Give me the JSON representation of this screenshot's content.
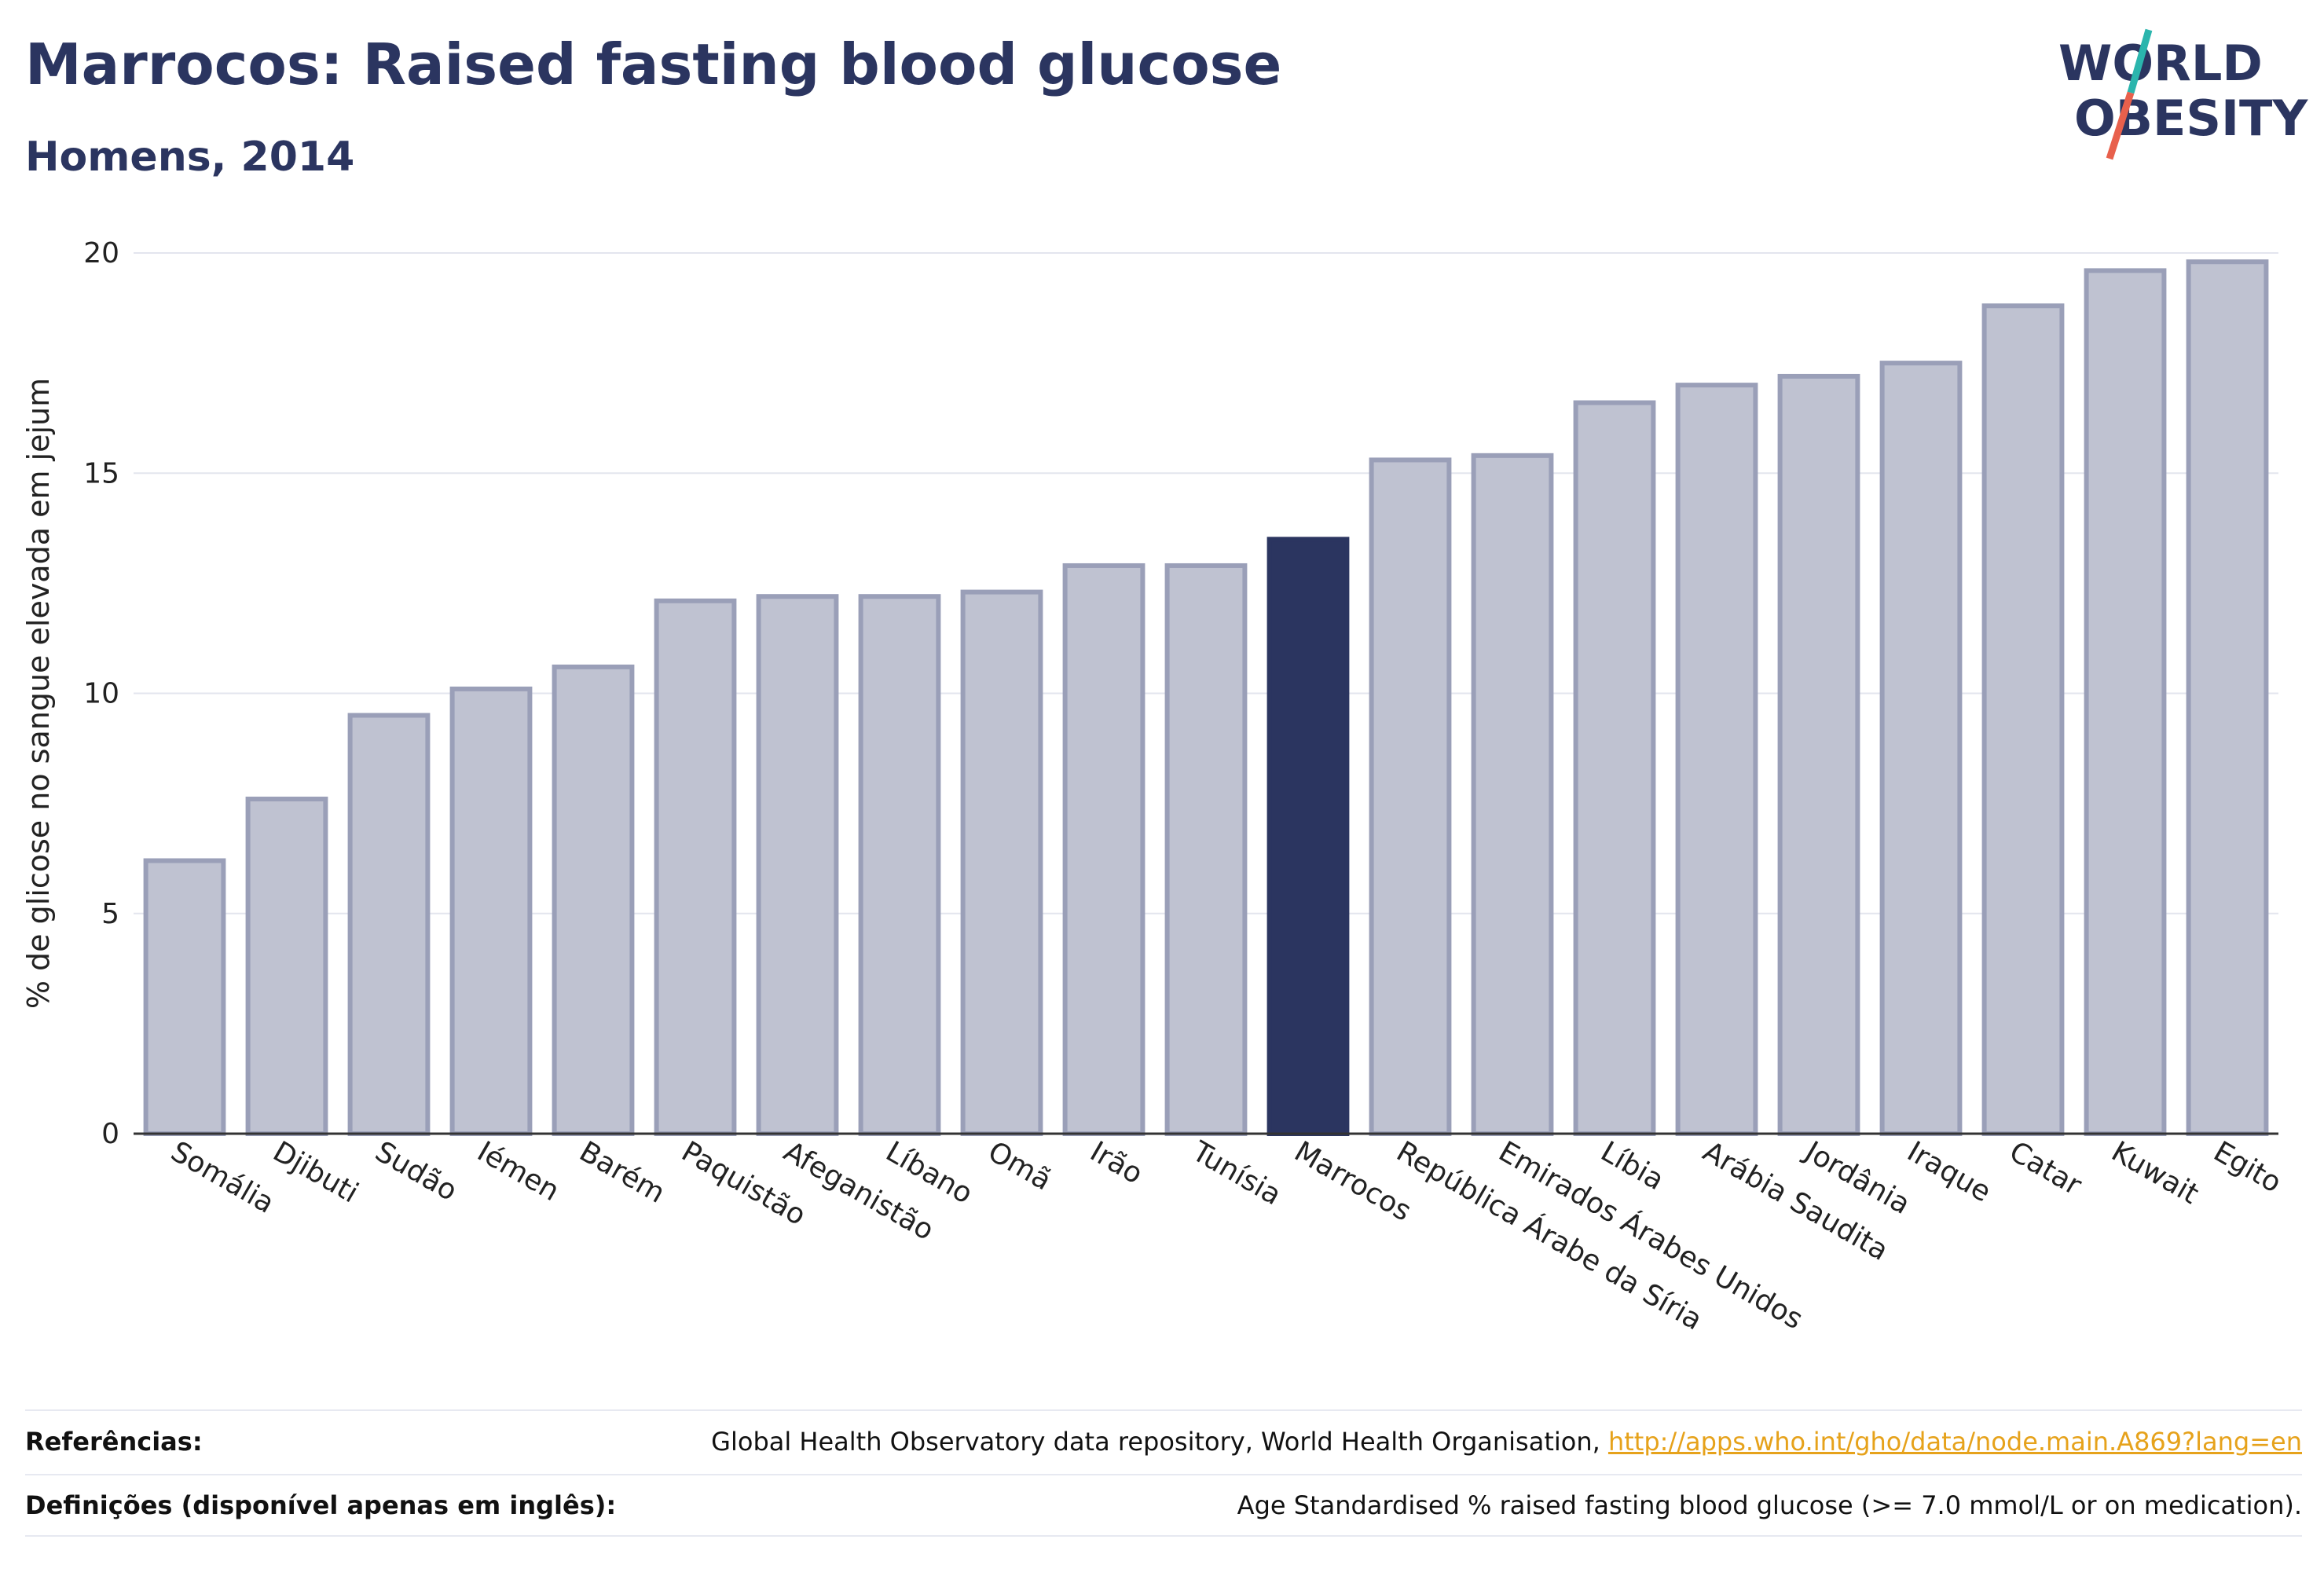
{
  "header": {
    "title": "Marrocos: Raised fasting blood glucose",
    "subtitle": "Homens, 2014"
  },
  "logo": {
    "line1": "WORLD",
    "line2": "OBESITY"
  },
  "footer": {
    "references_label": "Referências:",
    "references_text": "Global Health Observatory data repository, World Health Organisation,",
    "references_link": "http://apps.who.int/gho/data/node.main.A869?lang=en",
    "definitions_label": "Definições (disponível apenas em inglês):",
    "definitions_text": "Age Standardised % raised fasting blood glucose (>= 7.0 mmol/L or on medication)."
  },
  "colors": {
    "highlight": "#2b3560",
    "bar_fill": "#bfc2d1",
    "bar_stroke": "#9a9fb8",
    "link": "#e6a21b"
  },
  "chart_data": {
    "type": "bar",
    "title": "Marrocos: Raised fasting blood glucose",
    "subtitle": "Homens, 2014",
    "xlabel": "",
    "ylabel": "% de glicose no sangue elevada em jejum",
    "ylim": [
      0,
      20
    ],
    "yticks": [
      0,
      5,
      10,
      15,
      20
    ],
    "grid": true,
    "highlight": "Marrocos",
    "categories": [
      "Somália",
      "Djibuti",
      "Sudão",
      "Iémen",
      "Barém",
      "Paquistão",
      "Afeganistão",
      "Líbano",
      "Omã",
      "Irão",
      "Tunísia",
      "Marrocos",
      "República Árabe da Síria",
      "Emirados Árabes Unidos",
      "Líbia",
      "Arábia Saudita",
      "Jordânia",
      "Iraque",
      "Catar",
      "Kuwait",
      "Egito"
    ],
    "values": [
      6.2,
      7.6,
      9.5,
      10.1,
      10.6,
      12.1,
      12.2,
      12.2,
      12.3,
      12.9,
      12.9,
      13.5,
      15.3,
      15.4,
      16.6,
      17.0,
      17.2,
      17.5,
      18.8,
      19.6,
      19.8
    ]
  }
}
